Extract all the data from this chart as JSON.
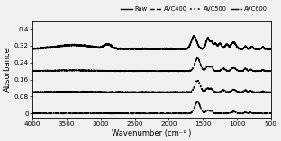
{
  "title": "",
  "xlabel": "Wavenumber (cm⁻¹ )",
  "ylabel": "Absorbance",
  "xlim": [
    4000,
    500
  ],
  "ylim": [
    -0.02,
    0.44
  ],
  "yticks": [
    0,
    0.08,
    0.16,
    0.24,
    0.32,
    0.4
  ],
  "ytick_labels": [
    "0",
    "0.08",
    "0.16",
    "0.24",
    "0.32",
    "0.4"
  ],
  "xticks": [
    4000,
    3500,
    3000,
    2500,
    2000,
    1500,
    1000,
    500
  ],
  "legend_labels": [
    "Raw",
    "AVC400",
    "AVC500",
    "AVC600"
  ],
  "legend_styles": [
    {
      "linestyle": "-",
      "color": "black",
      "linewidth": 1.0
    },
    {
      "linestyle": "--",
      "color": "black",
      "linewidth": 1.0
    },
    {
      "linestyle": ":",
      "color": "black",
      "linewidth": 1.2
    },
    {
      "linestyle": "-.",
      "color": "black",
      "linewidth": 1.0
    }
  ],
  "background_color": "#f0f0f0",
  "offsets": [
    0.305,
    0.2,
    0.1,
    0.0
  ]
}
